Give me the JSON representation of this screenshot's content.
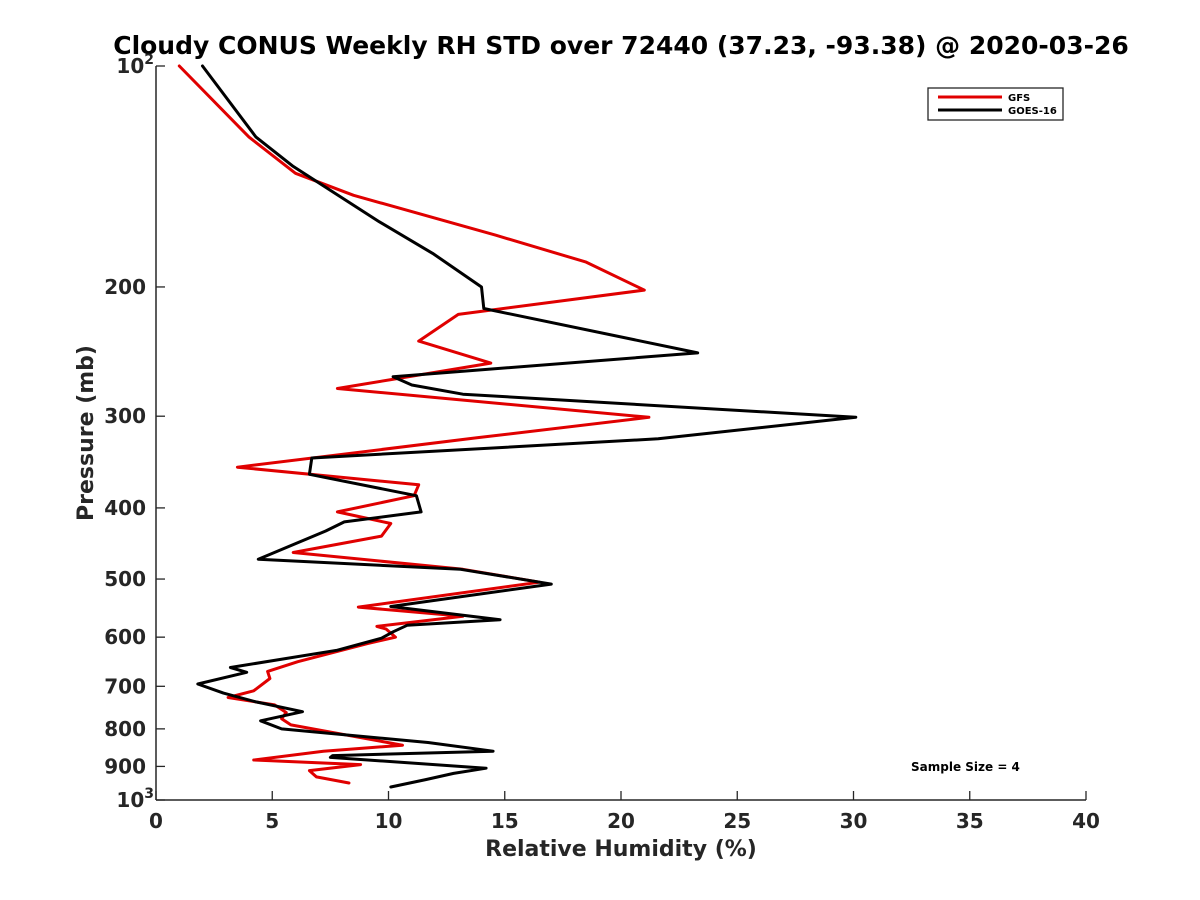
{
  "chart_data": {
    "type": "line",
    "title": "Cloudy CONUS Weekly RH STD over 72440 (37.23, -93.38) @ 2020-03-26",
    "xlabel": "Relative Humidity (%)",
    "ylabel": "Pressure (mb)",
    "xlim": [
      0,
      40
    ],
    "ylim": [
      100,
      1000
    ],
    "y_scale": "log",
    "y_reversed": true,
    "x_ticks": [
      "0",
      "5",
      "10",
      "15",
      "20",
      "25",
      "30",
      "35",
      "40"
    ],
    "x_tick_values": [
      0,
      5,
      10,
      15,
      20,
      25,
      30,
      35,
      40
    ],
    "y_ticks": [
      {
        "value": 100,
        "label": "10",
        "exp": "2"
      },
      {
        "value": 200,
        "label": "200",
        "exp": ""
      },
      {
        "value": 300,
        "label": "300",
        "exp": ""
      },
      {
        "value": 400,
        "label": "400",
        "exp": ""
      },
      {
        "value": 500,
        "label": "500",
        "exp": ""
      },
      {
        "value": 600,
        "label": "600",
        "exp": ""
      },
      {
        "value": 700,
        "label": "700",
        "exp": ""
      },
      {
        "value": 800,
        "label": "800",
        "exp": ""
      },
      {
        "value": 900,
        "label": "900",
        "exp": ""
      },
      {
        "value": 1000,
        "label": "10",
        "exp": "3"
      }
    ],
    "grid": false,
    "legend_position": "top-right",
    "annotation": "Sample Size = 4",
    "series": [
      {
        "name": "GFS",
        "color": "#e00000",
        "points": [
          [
            1.0,
            100
          ],
          [
            4.0,
            125
          ],
          [
            6.0,
            140
          ],
          [
            8.5,
            150
          ],
          [
            14.6,
            170
          ],
          [
            18.5,
            185
          ],
          [
            21.0,
            202
          ],
          [
            13.0,
            218
          ],
          [
            11.3,
            237
          ],
          [
            14.4,
            254
          ],
          [
            7.8,
            275
          ],
          [
            21.2,
            301
          ],
          [
            13.8,
            321
          ],
          [
            3.5,
            352
          ],
          [
            11.3,
            372
          ],
          [
            11.1,
            385
          ],
          [
            7.8,
            405
          ],
          [
            10.1,
            420
          ],
          [
            9.7,
            437
          ],
          [
            5.9,
            460
          ],
          [
            13.2,
            485
          ],
          [
            16.5,
            505
          ],
          [
            8.7,
            546
          ],
          [
            13.2,
            562
          ],
          [
            9.5,
            580
          ],
          [
            9.9,
            585
          ],
          [
            10.3,
            600
          ],
          [
            9.1,
            612
          ],
          [
            6.1,
            648
          ],
          [
            4.8,
            668
          ],
          [
            4.9,
            683
          ],
          [
            4.2,
            710
          ],
          [
            3.1,
            725
          ],
          [
            5.1,
            742
          ],
          [
            5.6,
            760
          ],
          [
            5.4,
            775
          ],
          [
            5.8,
            790
          ],
          [
            10.6,
            842
          ],
          [
            7.2,
            858
          ],
          [
            4.2,
            882
          ],
          [
            8.8,
            895
          ],
          [
            6.6,
            912
          ],
          [
            6.9,
            930
          ],
          [
            8.3,
            948
          ]
        ]
      },
      {
        "name": "GOES-16",
        "color": "#000000",
        "points": [
          [
            2.0,
            100
          ],
          [
            4.3,
            125
          ],
          [
            5.9,
            137
          ],
          [
            9.6,
            163
          ],
          [
            11.9,
            180
          ],
          [
            14.0,
            200
          ],
          [
            14.1,
            214
          ],
          [
            23.3,
            246
          ],
          [
            10.2,
            265
          ],
          [
            11.0,
            272
          ],
          [
            13.2,
            280
          ],
          [
            30.1,
            301
          ],
          [
            21.6,
            322
          ],
          [
            6.7,
            342
          ],
          [
            6.6,
            360
          ],
          [
            11.2,
            385
          ],
          [
            11.4,
            405
          ],
          [
            8.1,
            418
          ],
          [
            7.3,
            430
          ],
          [
            4.4,
            470
          ],
          [
            13.1,
            485
          ],
          [
            17.0,
            508
          ],
          [
            10.1,
            545
          ],
          [
            14.8,
            568
          ],
          [
            10.8,
            578
          ],
          [
            10.2,
            590
          ],
          [
            9.7,
            602
          ],
          [
            7.8,
            625
          ],
          [
            3.2,
            660
          ],
          [
            3.9,
            670
          ],
          [
            1.8,
            695
          ],
          [
            2.9,
            715
          ],
          [
            4.3,
            735
          ],
          [
            6.3,
            758
          ],
          [
            4.5,
            780
          ],
          [
            5.4,
            800
          ],
          [
            11.7,
            835
          ],
          [
            14.5,
            858
          ],
          [
            7.6,
            870
          ],
          [
            7.5,
            875
          ],
          [
            14.2,
            905
          ],
          [
            12.8,
            920
          ],
          [
            11.6,
            938
          ],
          [
            10.1,
            960
          ]
        ]
      }
    ]
  }
}
